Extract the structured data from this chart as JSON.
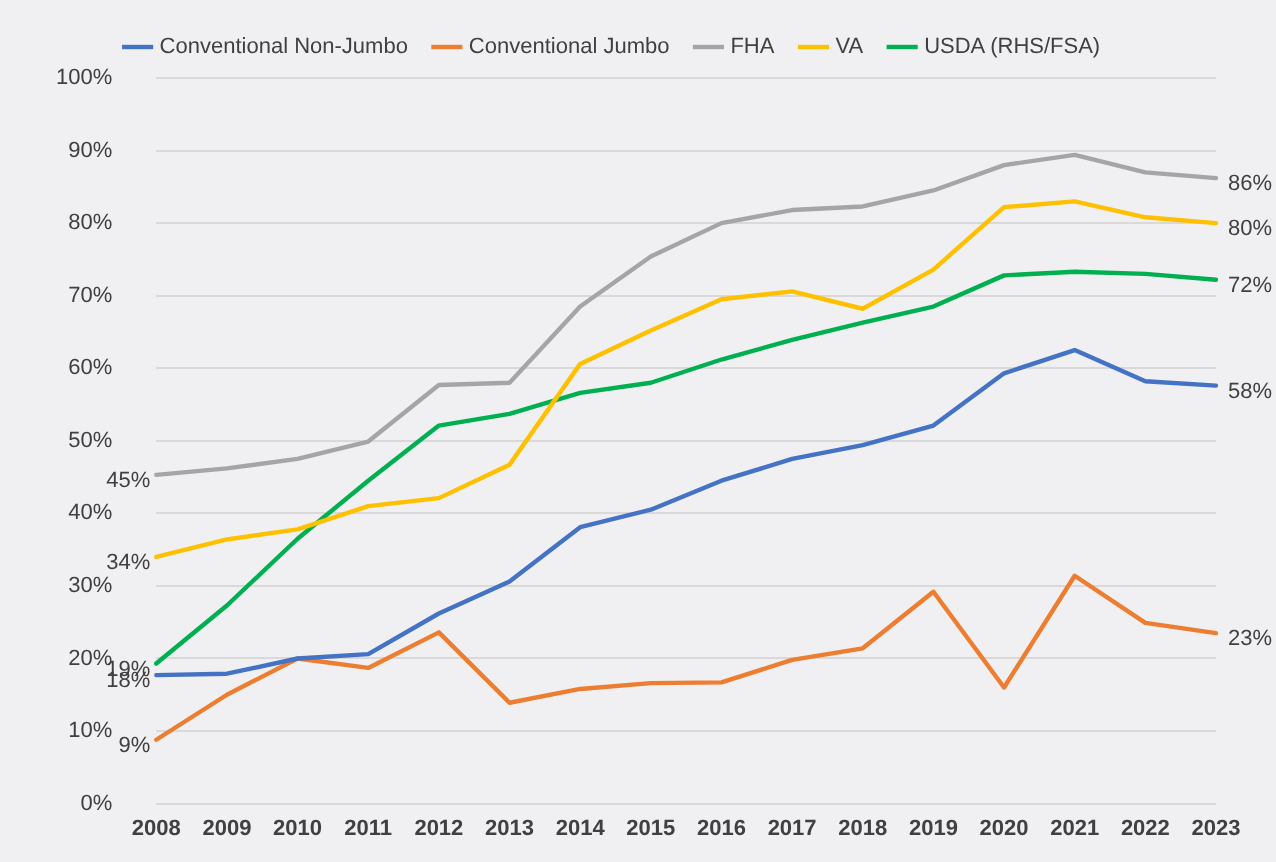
{
  "chart_data": {
    "type": "line",
    "categories": [
      "2008",
      "2009",
      "2010",
      "2011",
      "2012",
      "2013",
      "2014",
      "2015",
      "2016",
      "2017",
      "2018",
      "2019",
      "2020",
      "2021",
      "2022",
      "2023"
    ],
    "series": [
      {
        "name": "Conventional Non-Jumbo",
        "color": "#4472c4",
        "values": [
          17.7,
          17.9,
          20,
          20.6,
          26.2,
          30.6,
          38.1,
          40.5,
          44.5,
          47.5,
          49.4,
          52.1,
          59.3,
          62.5,
          58.2,
          57.6
        ],
        "value_labels": [
          "18%",
          null,
          null,
          null,
          null,
          null,
          null,
          null,
          null,
          null,
          null,
          null,
          null,
          null,
          null,
          "58%"
        ]
      },
      {
        "name": "Conventional Jumbo",
        "color": "#ed7d31",
        "values": [
          8.8,
          15,
          20,
          18.7,
          23.6,
          13.9,
          15.8,
          16.6,
          16.7,
          19.8,
          21.4,
          29.2,
          16,
          31.4,
          24.9,
          23.5
        ],
        "value_labels": [
          "9%",
          null,
          null,
          null,
          null,
          null,
          null,
          null,
          null,
          null,
          null,
          null,
          null,
          null,
          null,
          "23%"
        ]
      },
      {
        "name": "FHA",
        "color": "#a5a5a5",
        "values": [
          45.3,
          46.2,
          47.5,
          49.9,
          57.7,
          58,
          68.5,
          75.4,
          80,
          81.8,
          82.3,
          84.5,
          88,
          89.4,
          87,
          86.2
        ],
        "value_labels": [
          "45%",
          null,
          null,
          null,
          null,
          null,
          null,
          null,
          null,
          null,
          null,
          null,
          null,
          null,
          null,
          "86%"
        ]
      },
      {
        "name": "VA",
        "color": "#ffc000",
        "values": [
          34,
          36.4,
          37.8,
          41,
          42.1,
          46.7,
          60.6,
          65.2,
          69.5,
          70.6,
          68.2,
          73.6,
          82.2,
          83,
          80.8,
          80
        ],
        "value_labels": [
          "34%",
          null,
          null,
          null,
          null,
          null,
          null,
          null,
          null,
          null,
          null,
          null,
          null,
          null,
          null,
          "80%"
        ]
      },
      {
        "name": "USDA (RHS/FSA)",
        "color": "#00b050",
        "values": [
          19.3,
          27.3,
          36.5,
          44.5,
          52.1,
          53.7,
          56.6,
          58,
          61.2,
          63.9,
          66.3,
          68.5,
          72.8,
          73.3,
          73,
          72.2
        ],
        "value_labels": [
          "19%",
          null,
          null,
          null,
          null,
          null,
          null,
          null,
          null,
          null,
          null,
          null,
          null,
          null,
          null,
          "72%"
        ]
      }
    ],
    "ylim": [
      0,
      100
    ],
    "yticks": [
      {
        "value": 0,
        "label": "0%"
      },
      {
        "value": 10,
        "label": "10%"
      },
      {
        "value": 20,
        "label": "20%"
      },
      {
        "value": 30,
        "label": "30%"
      },
      {
        "value": 40,
        "label": "40%"
      },
      {
        "value": 50,
        "label": "50%"
      },
      {
        "value": 60,
        "label": "60%"
      },
      {
        "value": 70,
        "label": "70%"
      },
      {
        "value": 80,
        "label": "80%"
      },
      {
        "value": 90,
        "label": "90%"
      },
      {
        "value": 100,
        "label": "100%"
      }
    ],
    "grid": "y",
    "legend": "top",
    "marker": "none",
    "line_style": "solid"
  }
}
